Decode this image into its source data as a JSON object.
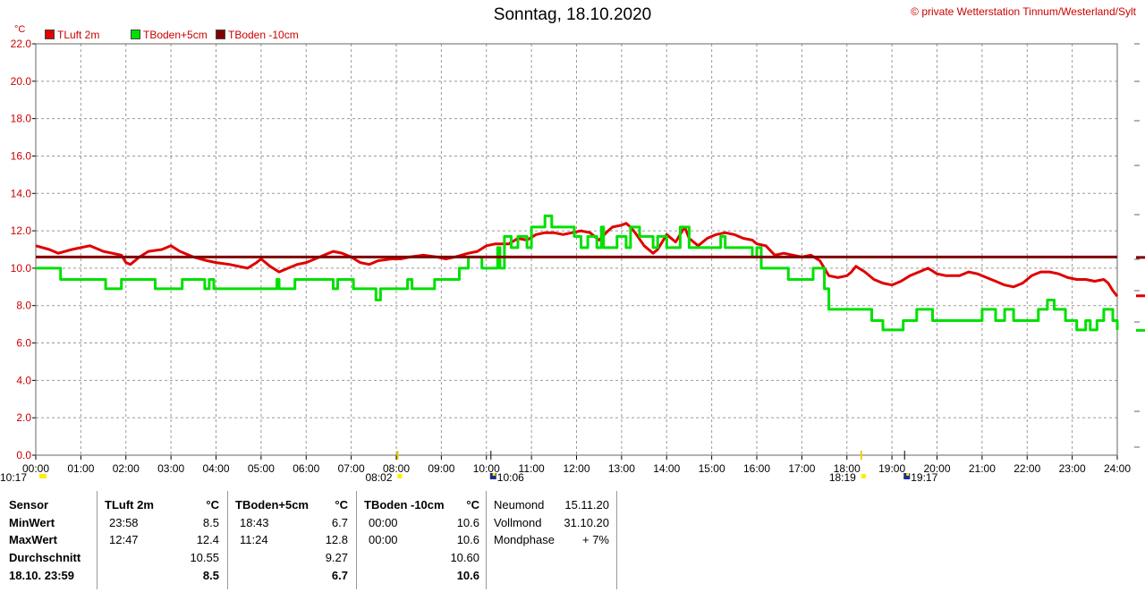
{
  "title": "Sonntag, 18.10.2020",
  "credit": "© private Wetterstation Tinnum/Westerland/Sylt",
  "unit": "°C",
  "colors": {
    "tluft": "#e00000",
    "tboden5": "#00e000",
    "tboden10": "#800000",
    "grid": "#999999",
    "axis": "#cc0000"
  },
  "legend": [
    {
      "label": "TLuft 2m",
      "color": "#e00000"
    },
    {
      "label": "TBoden+5cm",
      "color": "#00e000"
    },
    {
      "label": "TBoden -10cm",
      "color": "#800000"
    }
  ],
  "chart_data": {
    "type": "line",
    "x_unit": "hours",
    "xlim": [
      0,
      24
    ],
    "ylim": [
      0,
      22
    ],
    "grid": true,
    "y_ticks": [
      "0.0",
      "2.0",
      "4.0",
      "6.0",
      "8.0",
      "10.0",
      "12.0",
      "14.0",
      "16.0",
      "18.0",
      "20.0",
      "22.0"
    ],
    "x_ticks": [
      "00:00",
      "01:00",
      "02:00",
      "03:00",
      "04:00",
      "05:00",
      "06:00",
      "07:00",
      "08:00",
      "09:00",
      "10:00",
      "11:00",
      "12:00",
      "13:00",
      "14:00",
      "15:00",
      "16:00",
      "17:00",
      "18:00",
      "19:00",
      "20:00",
      "21:00",
      "22:00",
      "23:00",
      "24:00"
    ],
    "series": [
      {
        "name": "TLuft 2m",
        "color": "#e00000",
        "step": false,
        "points": [
          [
            0,
            11.2
          ],
          [
            0.3,
            11.0
          ],
          [
            0.5,
            10.8
          ],
          [
            0.8,
            11.0
          ],
          [
            1.0,
            11.1
          ],
          [
            1.2,
            11.2
          ],
          [
            1.5,
            10.9
          ],
          [
            1.7,
            10.8
          ],
          [
            1.9,
            10.7
          ],
          [
            2.0,
            10.3
          ],
          [
            2.1,
            10.2
          ],
          [
            2.3,
            10.6
          ],
          [
            2.5,
            10.9
          ],
          [
            2.8,
            11.0
          ],
          [
            3.0,
            11.2
          ],
          [
            3.2,
            10.9
          ],
          [
            3.5,
            10.6
          ],
          [
            3.8,
            10.4
          ],
          [
            4.0,
            10.3
          ],
          [
            4.3,
            10.2
          ],
          [
            4.5,
            10.1
          ],
          [
            4.7,
            10.0
          ],
          [
            4.9,
            10.3
          ],
          [
            5.0,
            10.5
          ],
          [
            5.2,
            10.1
          ],
          [
            5.4,
            9.8
          ],
          [
            5.6,
            10.0
          ],
          [
            5.8,
            10.2
          ],
          [
            6.0,
            10.3
          ],
          [
            6.2,
            10.5
          ],
          [
            6.4,
            10.7
          ],
          [
            6.6,
            10.9
          ],
          [
            6.8,
            10.8
          ],
          [
            7.0,
            10.6
          ],
          [
            7.2,
            10.3
          ],
          [
            7.4,
            10.2
          ],
          [
            7.6,
            10.4
          ],
          [
            7.9,
            10.5
          ],
          [
            8.1,
            10.5
          ],
          [
            8.3,
            10.6
          ],
          [
            8.6,
            10.7
          ],
          [
            8.9,
            10.6
          ],
          [
            9.1,
            10.5
          ],
          [
            9.3,
            10.6
          ],
          [
            9.6,
            10.8
          ],
          [
            9.8,
            10.9
          ],
          [
            10.0,
            11.2
          ],
          [
            10.2,
            11.3
          ],
          [
            10.5,
            11.3
          ],
          [
            10.7,
            11.6
          ],
          [
            10.9,
            11.5
          ],
          [
            11.1,
            11.8
          ],
          [
            11.3,
            11.9
          ],
          [
            11.5,
            11.9
          ],
          [
            11.7,
            11.8
          ],
          [
            11.9,
            11.9
          ],
          [
            12.1,
            12.0
          ],
          [
            12.3,
            11.9
          ],
          [
            12.5,
            11.5
          ],
          [
            12.7,
            12.0
          ],
          [
            12.8,
            12.2
          ],
          [
            13.0,
            12.3
          ],
          [
            13.1,
            12.4
          ],
          [
            13.2,
            12.2
          ],
          [
            13.3,
            11.9
          ],
          [
            13.5,
            11.2
          ],
          [
            13.7,
            10.8
          ],
          [
            13.8,
            11.0
          ],
          [
            14.0,
            11.8
          ],
          [
            14.2,
            11.4
          ],
          [
            14.4,
            12.2
          ],
          [
            14.5,
            11.6
          ],
          [
            14.7,
            11.2
          ],
          [
            14.9,
            11.6
          ],
          [
            15.1,
            11.8
          ],
          [
            15.3,
            11.9
          ],
          [
            15.5,
            11.8
          ],
          [
            15.7,
            11.6
          ],
          [
            15.9,
            11.5
          ],
          [
            16.0,
            11.3
          ],
          [
            16.2,
            11.2
          ],
          [
            16.4,
            10.7
          ],
          [
            16.6,
            10.8
          ],
          [
            16.8,
            10.7
          ],
          [
            17.0,
            10.6
          ],
          [
            17.2,
            10.7
          ],
          [
            17.4,
            10.4
          ],
          [
            17.6,
            9.6
          ],
          [
            17.8,
            9.5
          ],
          [
            18.0,
            9.6
          ],
          [
            18.1,
            9.8
          ],
          [
            18.2,
            10.1
          ],
          [
            18.4,
            9.8
          ],
          [
            18.6,
            9.4
          ],
          [
            18.8,
            9.2
          ],
          [
            19.0,
            9.1
          ],
          [
            19.2,
            9.3
          ],
          [
            19.4,
            9.6
          ],
          [
            19.6,
            9.8
          ],
          [
            19.8,
            10.0
          ],
          [
            20.0,
            9.7
          ],
          [
            20.2,
            9.6
          ],
          [
            20.5,
            9.6
          ],
          [
            20.7,
            9.8
          ],
          [
            20.9,
            9.7
          ],
          [
            21.1,
            9.5
          ],
          [
            21.3,
            9.3
          ],
          [
            21.5,
            9.1
          ],
          [
            21.7,
            9.0
          ],
          [
            21.9,
            9.2
          ],
          [
            22.1,
            9.6
          ],
          [
            22.3,
            9.8
          ],
          [
            22.5,
            9.8
          ],
          [
            22.7,
            9.7
          ],
          [
            22.9,
            9.5
          ],
          [
            23.1,
            9.4
          ],
          [
            23.3,
            9.4
          ],
          [
            23.5,
            9.3
          ],
          [
            23.7,
            9.4
          ],
          [
            23.8,
            9.2
          ],
          [
            23.9,
            8.8
          ],
          [
            24.0,
            8.5
          ]
        ]
      },
      {
        "name": "TBoden+5cm",
        "color": "#00e000",
        "step": true,
        "points": [
          [
            0,
            10.0
          ],
          [
            0.55,
            9.4
          ],
          [
            1.55,
            8.9
          ],
          [
            1.9,
            9.4
          ],
          [
            2.65,
            8.9
          ],
          [
            3.25,
            9.4
          ],
          [
            3.75,
            8.9
          ],
          [
            3.85,
            9.4
          ],
          [
            3.95,
            8.9
          ],
          [
            5.35,
            9.4
          ],
          [
            5.4,
            8.9
          ],
          [
            5.75,
            9.4
          ],
          [
            6.6,
            8.9
          ],
          [
            6.7,
            9.4
          ],
          [
            7.05,
            8.9
          ],
          [
            7.55,
            8.3
          ],
          [
            7.65,
            8.9
          ],
          [
            8.25,
            9.4
          ],
          [
            8.35,
            8.9
          ],
          [
            8.85,
            9.4
          ],
          [
            9.4,
            10.0
          ],
          [
            9.6,
            10.6
          ],
          [
            9.9,
            10.0
          ],
          [
            10.25,
            11.1
          ],
          [
            10.3,
            10.0
          ],
          [
            10.4,
            11.7
          ],
          [
            10.55,
            11.1
          ],
          [
            10.7,
            11.7
          ],
          [
            10.9,
            11.1
          ],
          [
            11.0,
            12.2
          ],
          [
            11.3,
            12.8
          ],
          [
            11.45,
            12.2
          ],
          [
            11.95,
            11.7
          ],
          [
            12.1,
            11.1
          ],
          [
            12.25,
            11.7
          ],
          [
            12.45,
            11.1
          ],
          [
            12.55,
            12.2
          ],
          [
            12.6,
            11.1
          ],
          [
            12.9,
            11.7
          ],
          [
            13.1,
            11.1
          ],
          [
            13.2,
            12.2
          ],
          [
            13.4,
            11.7
          ],
          [
            13.7,
            11.1
          ],
          [
            13.8,
            11.7
          ],
          [
            14.0,
            11.1
          ],
          [
            14.3,
            12.2
          ],
          [
            14.5,
            11.1
          ],
          [
            15.2,
            11.7
          ],
          [
            15.3,
            11.1
          ],
          [
            15.9,
            10.6
          ],
          [
            16.0,
            11.1
          ],
          [
            16.1,
            10.0
          ],
          [
            16.7,
            9.4
          ],
          [
            17.25,
            10.0
          ],
          [
            17.5,
            8.9
          ],
          [
            17.6,
            7.8
          ],
          [
            18.55,
            7.2
          ],
          [
            18.8,
            6.7
          ],
          [
            19.25,
            7.2
          ],
          [
            19.55,
            7.8
          ],
          [
            19.9,
            7.2
          ],
          [
            21.0,
            7.8
          ],
          [
            21.3,
            7.2
          ],
          [
            21.5,
            7.8
          ],
          [
            21.7,
            7.2
          ],
          [
            22.25,
            7.8
          ],
          [
            22.45,
            8.3
          ],
          [
            22.6,
            7.8
          ],
          [
            22.85,
            7.2
          ],
          [
            23.1,
            6.7
          ],
          [
            23.3,
            7.2
          ],
          [
            23.4,
            6.7
          ],
          [
            23.55,
            7.2
          ],
          [
            23.7,
            7.8
          ],
          [
            23.9,
            7.2
          ],
          [
            24.0,
            6.7
          ]
        ]
      },
      {
        "name": "TBoden -10cm",
        "color": "#800000",
        "step": false,
        "points": [
          [
            0,
            10.6
          ],
          [
            24,
            10.6
          ]
        ]
      }
    ]
  },
  "sun_markers": [
    {
      "label": "08:02",
      "hour": 8.03
    },
    {
      "label": "18:19",
      "hour": 18.32
    }
  ],
  "moon_markers": [
    {
      "label": "10:17",
      "hour": 0
    },
    {
      "label": "10:06",
      "hour": 10.1
    },
    {
      "label": "19:17",
      "hour": 19.28
    }
  ],
  "table": {
    "row_labels": [
      "Sensor",
      "MinWert",
      "MaxWert",
      "Durchschnitt",
      "18.10. 23:59"
    ],
    "groups": [
      {
        "header": "TLuft 2m",
        "unit": "°C",
        "rows": [
          {
            "time": "23:58",
            "value": "8.5"
          },
          {
            "time": "12:47",
            "value": "12.4"
          },
          {
            "time": "",
            "value": "10.55"
          },
          {
            "time": "",
            "value": "8.5"
          }
        ]
      },
      {
        "header": "TBoden+5cm",
        "unit": "°C",
        "rows": [
          {
            "time": "18:43",
            "value": "6.7"
          },
          {
            "time": "11:24",
            "value": "12.8"
          },
          {
            "time": "",
            "value": "9.27"
          },
          {
            "time": "",
            "value": "6.7"
          }
        ]
      },
      {
        "header": "TBoden -10cm",
        "unit": "°C",
        "rows": [
          {
            "time": "00:00",
            "value": "10.6"
          },
          {
            "time": "00:00",
            "value": "10.6"
          },
          {
            "time": "",
            "value": "10.60"
          },
          {
            "time": "",
            "value": "10.6"
          }
        ]
      }
    ],
    "moon": [
      {
        "label": "Neumond",
        "value": "15.11.20"
      },
      {
        "label": "Vollmond",
        "value": "31.10.20"
      },
      {
        "label": "Mondphase",
        "value": "+ 7%"
      }
    ]
  }
}
